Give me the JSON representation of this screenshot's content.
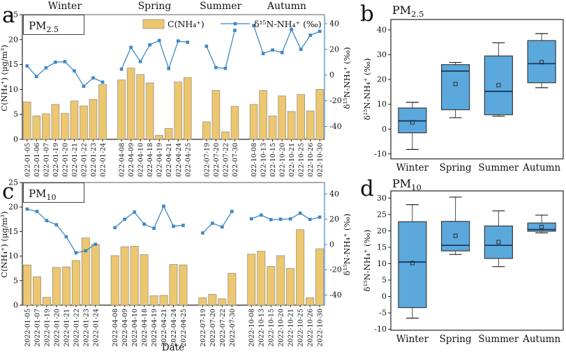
{
  "colors": {
    "bar": "#EDC76F",
    "bar_edge": "#9A9284",
    "line": "#3C88C5",
    "box_fill": "#5BA8DC",
    "box_edge": "#3A3A3A",
    "median": "#17375E",
    "whisker": "#4A4A4A",
    "axis": "#222222",
    "border_top": "#909090"
  },
  "chart_data": [
    {
      "panel_label": "a",
      "type": "bar+line",
      "pm_main": "PM",
      "pm_sub": "2.5",
      "left_axis": {
        "label": "C(NH₄⁺) (μg/m³)",
        "ticks": [
          0,
          5,
          10,
          15,
          20,
          25
        ],
        "range": [
          0,
          25
        ]
      },
      "right_axis": {
        "label": "δ¹⁵N-NH₄⁺ (‰)",
        "ticks": [
          40,
          20,
          0,
          -20,
          -40
        ],
        "range": [
          -50,
          47
        ]
      },
      "legend": {
        "bar_label": "C(NH₄⁺)",
        "line_label": "δ¹⁵N-NH₄⁺ (‰)"
      },
      "seasons": [
        {
          "name": "Winter",
          "dates": [
            "2022-01-05",
            "2022-01-06",
            "2022-01-07",
            "2022-01-19",
            "2022-01-20",
            "2022-01-21",
            "2022-01-22",
            "2022-01-23",
            "2022-01-24"
          ],
          "c_nh4": [
            7.5,
            4.7,
            5.1,
            7.0,
            5.2,
            7.7,
            6.7,
            8.0,
            11.0
          ],
          "d15n": [
            7.1,
            -1.1,
            5.6,
            10.0,
            10.4,
            3.3,
            -8.7,
            -2.2,
            -5.5
          ]
        },
        {
          "name": "Spring",
          "dates": [
            "2022-04-08",
            "2022-04-09",
            "2022-04-10",
            "2022-04-18",
            "2022-04-19",
            "2022-04-21",
            "2022-04-24",
            "2022-04-25"
          ],
          "c_nh4": [
            11.9,
            14.3,
            13.0,
            11.3,
            0.8,
            2.2,
            11.5,
            12.4
          ],
          "d15n": [
            4.6,
            21.5,
            10.5,
            23.5,
            26.9,
            5.1,
            26.5,
            25.5
          ]
        },
        {
          "name": "Summer",
          "dates": [
            "2022-07-19",
            "2022-07-20",
            "2022-07-22",
            "2022-07-30"
          ],
          "c_nh4": [
            3.5,
            9.8,
            1.5,
            6.6
          ],
          "d15n": [
            22.4,
            5.8,
            5.2,
            34.8
          ]
        },
        {
          "name": "Autumn",
          "dates": [
            "2022-10-08",
            "2022-10-13",
            "2022-10-15",
            "2022-10-20",
            "2022-10-21",
            "2022-10-25",
            "2022-10-26",
            "2022-10-30"
          ],
          "c_nh4": [
            7.0,
            9.8,
            4.7,
            8.7,
            5.6,
            9.0,
            5.7,
            10.0
          ],
          "d15n": [
            38.5,
            16.7,
            19.5,
            17.5,
            35.5,
            20.0,
            31.0,
            34.0
          ]
        }
      ]
    },
    {
      "panel_label": "b",
      "type": "box",
      "pm_main": "PM",
      "pm_sub": "2.5",
      "ylabel": "δ¹⁵N-NH₄⁺ (‰)",
      "yticks": [
        -10,
        0,
        10,
        20,
        30,
        40
      ],
      "categories": [
        "Winter",
        "Spring",
        "Summer",
        "Autumn"
      ],
      "boxes": [
        {
          "low": -8.2,
          "q1": -1.5,
          "median": 3.3,
          "mean": 2.7,
          "q3": 8.5,
          "high": 10.8
        },
        {
          "low": 4.6,
          "q1": 7.8,
          "median": 23.4,
          "mean": 18.2,
          "q3": 26.0,
          "high": 26.9
        },
        {
          "low": 5.2,
          "q1": 5.8,
          "median": 15.2,
          "mean": 17.7,
          "q3": 29.5,
          "high": 34.8
        },
        {
          "low": 16.7,
          "q1": 18.7,
          "median": 26.4,
          "mean": 27.0,
          "q3": 35.7,
          "high": 38.5
        }
      ]
    },
    {
      "panel_label": "c",
      "type": "bar+line",
      "pm_main": "PM",
      "pm_sub": "10",
      "xlabel": "Date",
      "left_axis": {
        "label": "C(NH₄⁺) (μg/m³)",
        "ticks": [
          0,
          5,
          10,
          15,
          20,
          25
        ],
        "range": [
          0,
          25
        ]
      },
      "right_axis": {
        "label": "δ¹⁵N-NH₄⁺ (‰)",
        "ticks": [
          40,
          20,
          0,
          -20,
          -40
        ],
        "range": [
          -48,
          49
        ]
      },
      "seasons": [
        {
          "name": "Winter",
          "dates": [
            "2022-01-05",
            "2022-01-07",
            "2022-01-19",
            "2022-01-20",
            "2022-01-21",
            "2022-01-22",
            "2022-01-23",
            "2022-01-24"
          ],
          "c_nh4": [
            8.2,
            5.8,
            1.6,
            7.7,
            7.8,
            9.1,
            13.7,
            12.4
          ],
          "d15n": [
            28.0,
            26.1,
            18.9,
            15.6,
            6.1,
            -6.6,
            -5.0,
            0.2
          ]
        },
        {
          "name": "Spring",
          "dates": [
            "2022-04-08",
            "2022-04-09",
            "2022-04-10",
            "2022-04-18",
            "2022-04-19",
            "2022-04-21",
            "2022-04-24",
            "2022-04-25"
          ],
          "c_nh4": [
            10.1,
            11.9,
            12.0,
            10.3,
            1.9,
            2.0,
            8.3,
            8.2
          ],
          "d15n": [
            13.3,
            20.0,
            25.6,
            16.1,
            12.8,
            30.3,
            14.4,
            15.1
          ]
        },
        {
          "name": "Summer",
          "dates": [
            "2022-07-19",
            "2022-07-20",
            "2022-07-22",
            "2022-07-30"
          ],
          "c_nh4": [
            1.5,
            2.2,
            1.3,
            6.5
          ],
          "d15n": [
            9.1,
            16.8,
            13.9,
            26.1
          ]
        },
        {
          "name": "Autumn",
          "dates": [
            "2022-10-08",
            "2022-10-13",
            "2022-10-15",
            "2022-10-20",
            "2022-10-21",
            "2022-10-25",
            "2022-10-26",
            "2022-10-30"
          ],
          "c_nh4": [
            10.4,
            11.0,
            7.9,
            10.1,
            7.5,
            15.4,
            1.5,
            11.5
          ],
          "d15n": [
            20.3,
            23.3,
            19.6,
            20.0,
            20.2,
            24.8,
            19.8,
            21.6
          ]
        }
      ]
    },
    {
      "panel_label": "d",
      "type": "box",
      "pm_main": "PM",
      "pm_sub": "10",
      "ylabel": "δ¹⁵N-NH₄⁺ (‰)",
      "yticks": [
        -10,
        -5,
        0,
        5,
        10,
        15,
        20,
        25,
        30
      ],
      "categories": [
        "Winter",
        "Spring",
        "Summer",
        "Autumn"
      ],
      "boxes": [
        {
          "low": -6.6,
          "q1": -3.4,
          "median": 10.5,
          "mean": 10.2,
          "q3": 22.8,
          "high": 28.0
        },
        {
          "low": 12.8,
          "q1": 13.9,
          "median": 15.6,
          "mean": 18.5,
          "q3": 22.9,
          "high": 30.3
        },
        {
          "low": 9.1,
          "q1": 11.6,
          "median": 15.6,
          "mean": 16.6,
          "q3": 21.5,
          "high": 26.1
        },
        {
          "low": 19.4,
          "q1": 19.9,
          "median": 20.4,
          "mean": 21.2,
          "q3": 22.4,
          "high": 24.8
        }
      ]
    }
  ]
}
